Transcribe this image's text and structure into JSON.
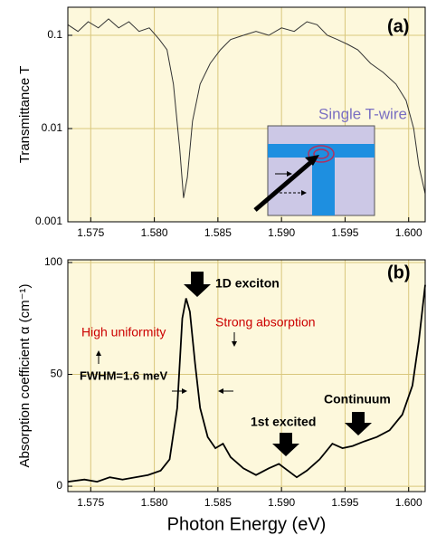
{
  "chart_data": [
    {
      "type": "line",
      "ylabel": "Transmittance T",
      "log_y": true,
      "grid": true,
      "xlim": [
        1.5732,
        1.6013
      ],
      "ylim": [
        0.001,
        0.2
      ],
      "xticks": [
        1.575,
        {
          "value": 1.58,
          "label": "1.580"
        },
        1.585,
        {
          "value": 1.59,
          "label": "1.590"
        },
        1.595,
        {
          "value": 1.6,
          "label": "1.600"
        }
      ],
      "yticks": [
        0.001,
        0.01,
        0.1
      ],
      "annotations": [
        "(a)",
        "Single T-wire"
      ],
      "series": [
        {
          "color": "#333333",
          "x": [
            1.5732,
            1.574,
            1.5748,
            1.5756,
            1.5764,
            1.5772,
            1.578,
            1.5788,
            1.5796,
            1.5804,
            1.581,
            1.5815,
            1.582,
            1.5823,
            1.5826,
            1.583,
            1.5836,
            1.5844,
            1.5852,
            1.586,
            1.587,
            1.588,
            1.589,
            1.59,
            1.591,
            1.592,
            1.5928,
            1.5936,
            1.5944,
            1.5952,
            1.596,
            1.597,
            1.598,
            1.599,
            1.5998,
            1.6004,
            1.6008,
            1.6013
          ],
          "values": [
            0.13,
            0.11,
            0.14,
            0.12,
            0.15,
            0.12,
            0.14,
            0.11,
            0.12,
            0.09,
            0.07,
            0.03,
            0.006,
            0.0018,
            0.003,
            0.012,
            0.03,
            0.05,
            0.07,
            0.09,
            0.1,
            0.11,
            0.1,
            0.12,
            0.11,
            0.14,
            0.13,
            0.1,
            0.09,
            0.08,
            0.07,
            0.05,
            0.04,
            0.03,
            0.02,
            0.01,
            0.004,
            0.002
          ]
        }
      ]
    },
    {
      "type": "line",
      "ylabel": "Absorption coefficient α (cm⁻¹)",
      "xlabel": "Photon Energy (eV)",
      "log_y": false,
      "grid": true,
      "xlim": [
        1.5732,
        1.6013
      ],
      "ylim": [
        -2.4,
        101.2
      ],
      "xticks": [
        1.575,
        {
          "value": 1.58,
          "label": "1.580"
        },
        1.585,
        {
          "value": 1.59,
          "label": "1.590"
        },
        1.595,
        {
          "value": 1.6,
          "label": "1.600"
        }
      ],
      "yticks": [
        0,
        50,
        100
      ],
      "annotations": [
        "(b)",
        "1D exciton",
        "Strong absorption",
        "High uniformity",
        "FWHM=1.6 meV",
        "1st excited",
        "Continuum"
      ],
      "series": [
        {
          "color": "#000000",
          "x": [
            1.5732,
            1.5745,
            1.5755,
            1.5765,
            1.5775,
            1.5785,
            1.5795,
            1.5805,
            1.5812,
            1.5818,
            1.5822,
            1.5825,
            1.5828,
            1.5832,
            1.5836,
            1.5842,
            1.5848,
            1.5854,
            1.586,
            1.587,
            1.588,
            1.589,
            1.5898,
            1.5905,
            1.5912,
            1.592,
            1.593,
            1.594,
            1.5948,
            1.5956,
            1.5965,
            1.5975,
            1.5985,
            1.5995,
            1.6003,
            1.6008,
            1.6013
          ],
          "values": [
            2,
            3,
            2,
            4,
            3,
            4,
            5,
            7,
            12,
            35,
            75,
            84,
            78,
            55,
            35,
            22,
            17,
            19,
            13,
            8,
            5,
            8,
            10,
            7,
            4,
            7,
            12,
            19,
            17,
            18,
            20,
            22,
            25,
            32,
            45,
            65,
            90
          ]
        }
      ]
    }
  ]
}
